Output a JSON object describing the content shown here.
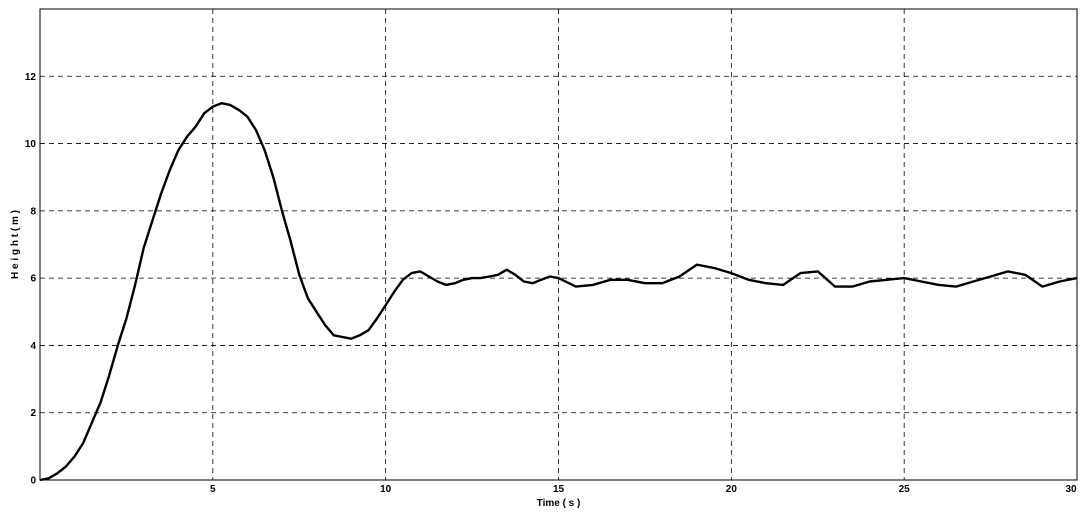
{
  "chart_data": {
    "type": "line",
    "title": "",
    "xlabel": "Time ( s )",
    "ylabel": "H e i g h t ( m )",
    "xlim": [
      0,
      30
    ],
    "ylim": [
      0,
      14
    ],
    "xticks": [
      5,
      10,
      15,
      20,
      25,
      30
    ],
    "yticks": [
      0,
      2,
      4,
      6,
      8,
      10,
      12
    ],
    "xtick_labels": [
      "5",
      "10",
      "15",
      "20",
      "25",
      "30"
    ],
    "ytick_labels": [
      "0",
      "2",
      "4",
      "6",
      "8",
      "10",
      "12"
    ],
    "grid": true,
    "legend": "none",
    "line_color": "#000000",
    "series": [
      {
        "x": [
          0,
          0.25,
          0.5,
          0.75,
          1.0,
          1.25,
          1.5,
          1.75,
          2.0,
          2.25,
          2.5,
          2.75,
          3.0,
          3.25,
          3.5,
          3.75,
          4.0,
          4.25,
          4.5,
          4.75,
          5.0,
          5.25,
          5.5,
          5.75,
          6.0,
          6.25,
          6.5,
          6.75,
          7.0,
          7.25,
          7.5,
          7.75,
          8.0,
          8.25,
          8.5,
          8.75,
          9.0,
          9.25,
          9.5,
          9.75,
          10.0,
          10.25,
          10.5,
          10.75,
          11.0,
          11.25,
          11.5,
          11.75,
          12.0,
          12.25,
          12.5,
          12.75,
          13.0,
          13.25,
          13.5,
          13.75,
          14.0,
          14.25,
          14.5,
          14.75,
          15.0,
          15.5,
          16.0,
          16.5,
          17.0,
          17.5,
          18.0,
          18.5,
          19.0,
          19.5,
          20.0,
          20.5,
          21.0,
          21.5,
          22.0,
          22.5,
          23.0,
          23.5,
          24.0,
          24.5,
          25.0,
          25.5,
          26.0,
          26.5,
          27.0,
          27.5,
          28.0,
          28.5,
          29.0,
          29.5,
          30.0
        ],
        "y": [
          0,
          0.05,
          0.2,
          0.4,
          0.7,
          1.1,
          1.7,
          2.3,
          3.1,
          4.0,
          4.8,
          5.8,
          6.9,
          7.7,
          8.5,
          9.2,
          9.8,
          10.2,
          10.5,
          10.9,
          11.1,
          11.2,
          11.15,
          11.0,
          10.8,
          10.4,
          9.8,
          9.0,
          8.0,
          7.1,
          6.1,
          5.4,
          5.0,
          4.6,
          4.3,
          4.25,
          4.2,
          4.3,
          4.45,
          4.8,
          5.2,
          5.6,
          5.95,
          6.15,
          6.2,
          6.05,
          5.9,
          5.8,
          5.85,
          5.95,
          6.0,
          6.0,
          6.05,
          6.1,
          6.25,
          6.1,
          5.9,
          5.85,
          5.95,
          6.05,
          6.0,
          5.75,
          5.8,
          5.95,
          5.95,
          5.85,
          5.85,
          6.05,
          6.4,
          6.3,
          6.15,
          5.95,
          5.85,
          5.8,
          6.15,
          6.2,
          5.75,
          5.75,
          5.9,
          5.95,
          6.0,
          5.9,
          5.8,
          5.75,
          5.9,
          6.05,
          6.2,
          6.1,
          5.75,
          5.9,
          6.0
        ]
      }
    ]
  }
}
